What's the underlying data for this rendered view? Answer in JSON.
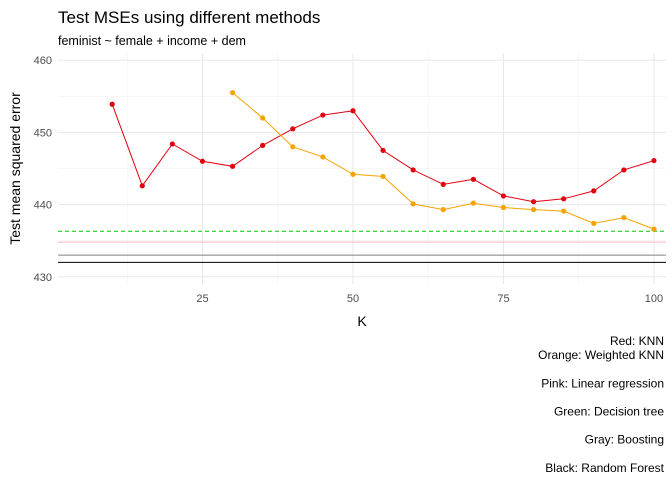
{
  "chart_data": {
    "type": "line",
    "title": "Test MSEs using different methods",
    "subtitle": "feminist ~ female + income + dem",
    "xlabel": "K",
    "ylabel": "Test mean squared error",
    "xlim": [
      1,
      102
    ],
    "ylim": [
      429,
      461
    ],
    "x_ticks": [
      25,
      50,
      75,
      100
    ],
    "y_ticks": [
      430,
      440,
      450,
      460
    ],
    "grid": true,
    "series": [
      {
        "color": "#e3000f",
        "x": [
          10,
          15,
          20,
          25,
          30,
          35,
          40,
          45,
          50,
          55,
          60,
          65,
          70,
          75,
          80,
          85,
          90,
          95,
          100
        ],
        "values": [
          453.9,
          442.6,
          448.4,
          446.0,
          445.3,
          448.2,
          450.5,
          452.4,
          453.0,
          447.5,
          444.8,
          442.8,
          443.5,
          441.2,
          440.4,
          440.8,
          441.9,
          444.8,
          446.1
        ]
      },
      {
        "color": "#f5a300",
        "x": [
          30,
          35,
          40,
          45,
          50,
          55,
          60,
          65,
          70,
          75,
          80,
          85,
          90,
          95,
          100
        ],
        "values": [
          455.5,
          452.0,
          448.0,
          446.6,
          444.2,
          443.9,
          440.1,
          439.3,
          440.2,
          439.6,
          439.3,
          439.1,
          437.4,
          438.2,
          436.6
        ]
      }
    ],
    "reference_lines": [
      {
        "value": 436.3,
        "color": "#00cc00",
        "style": "dashed"
      },
      {
        "value": 434.8,
        "color": "#ffb6c1",
        "style": "solid"
      },
      {
        "value": 433.0,
        "color": "#808080",
        "style": "solid"
      },
      {
        "value": 432.0,
        "color": "#000000",
        "style": "solid"
      }
    ],
    "caption_lines": [
      "Red: KNN",
      "Orange: Weighted KNN",
      "",
      "Pink: Linear regression",
      "",
      "Green: Decision tree",
      "",
      "Gray: Boosting",
      "",
      "Black: Random Forest"
    ]
  }
}
